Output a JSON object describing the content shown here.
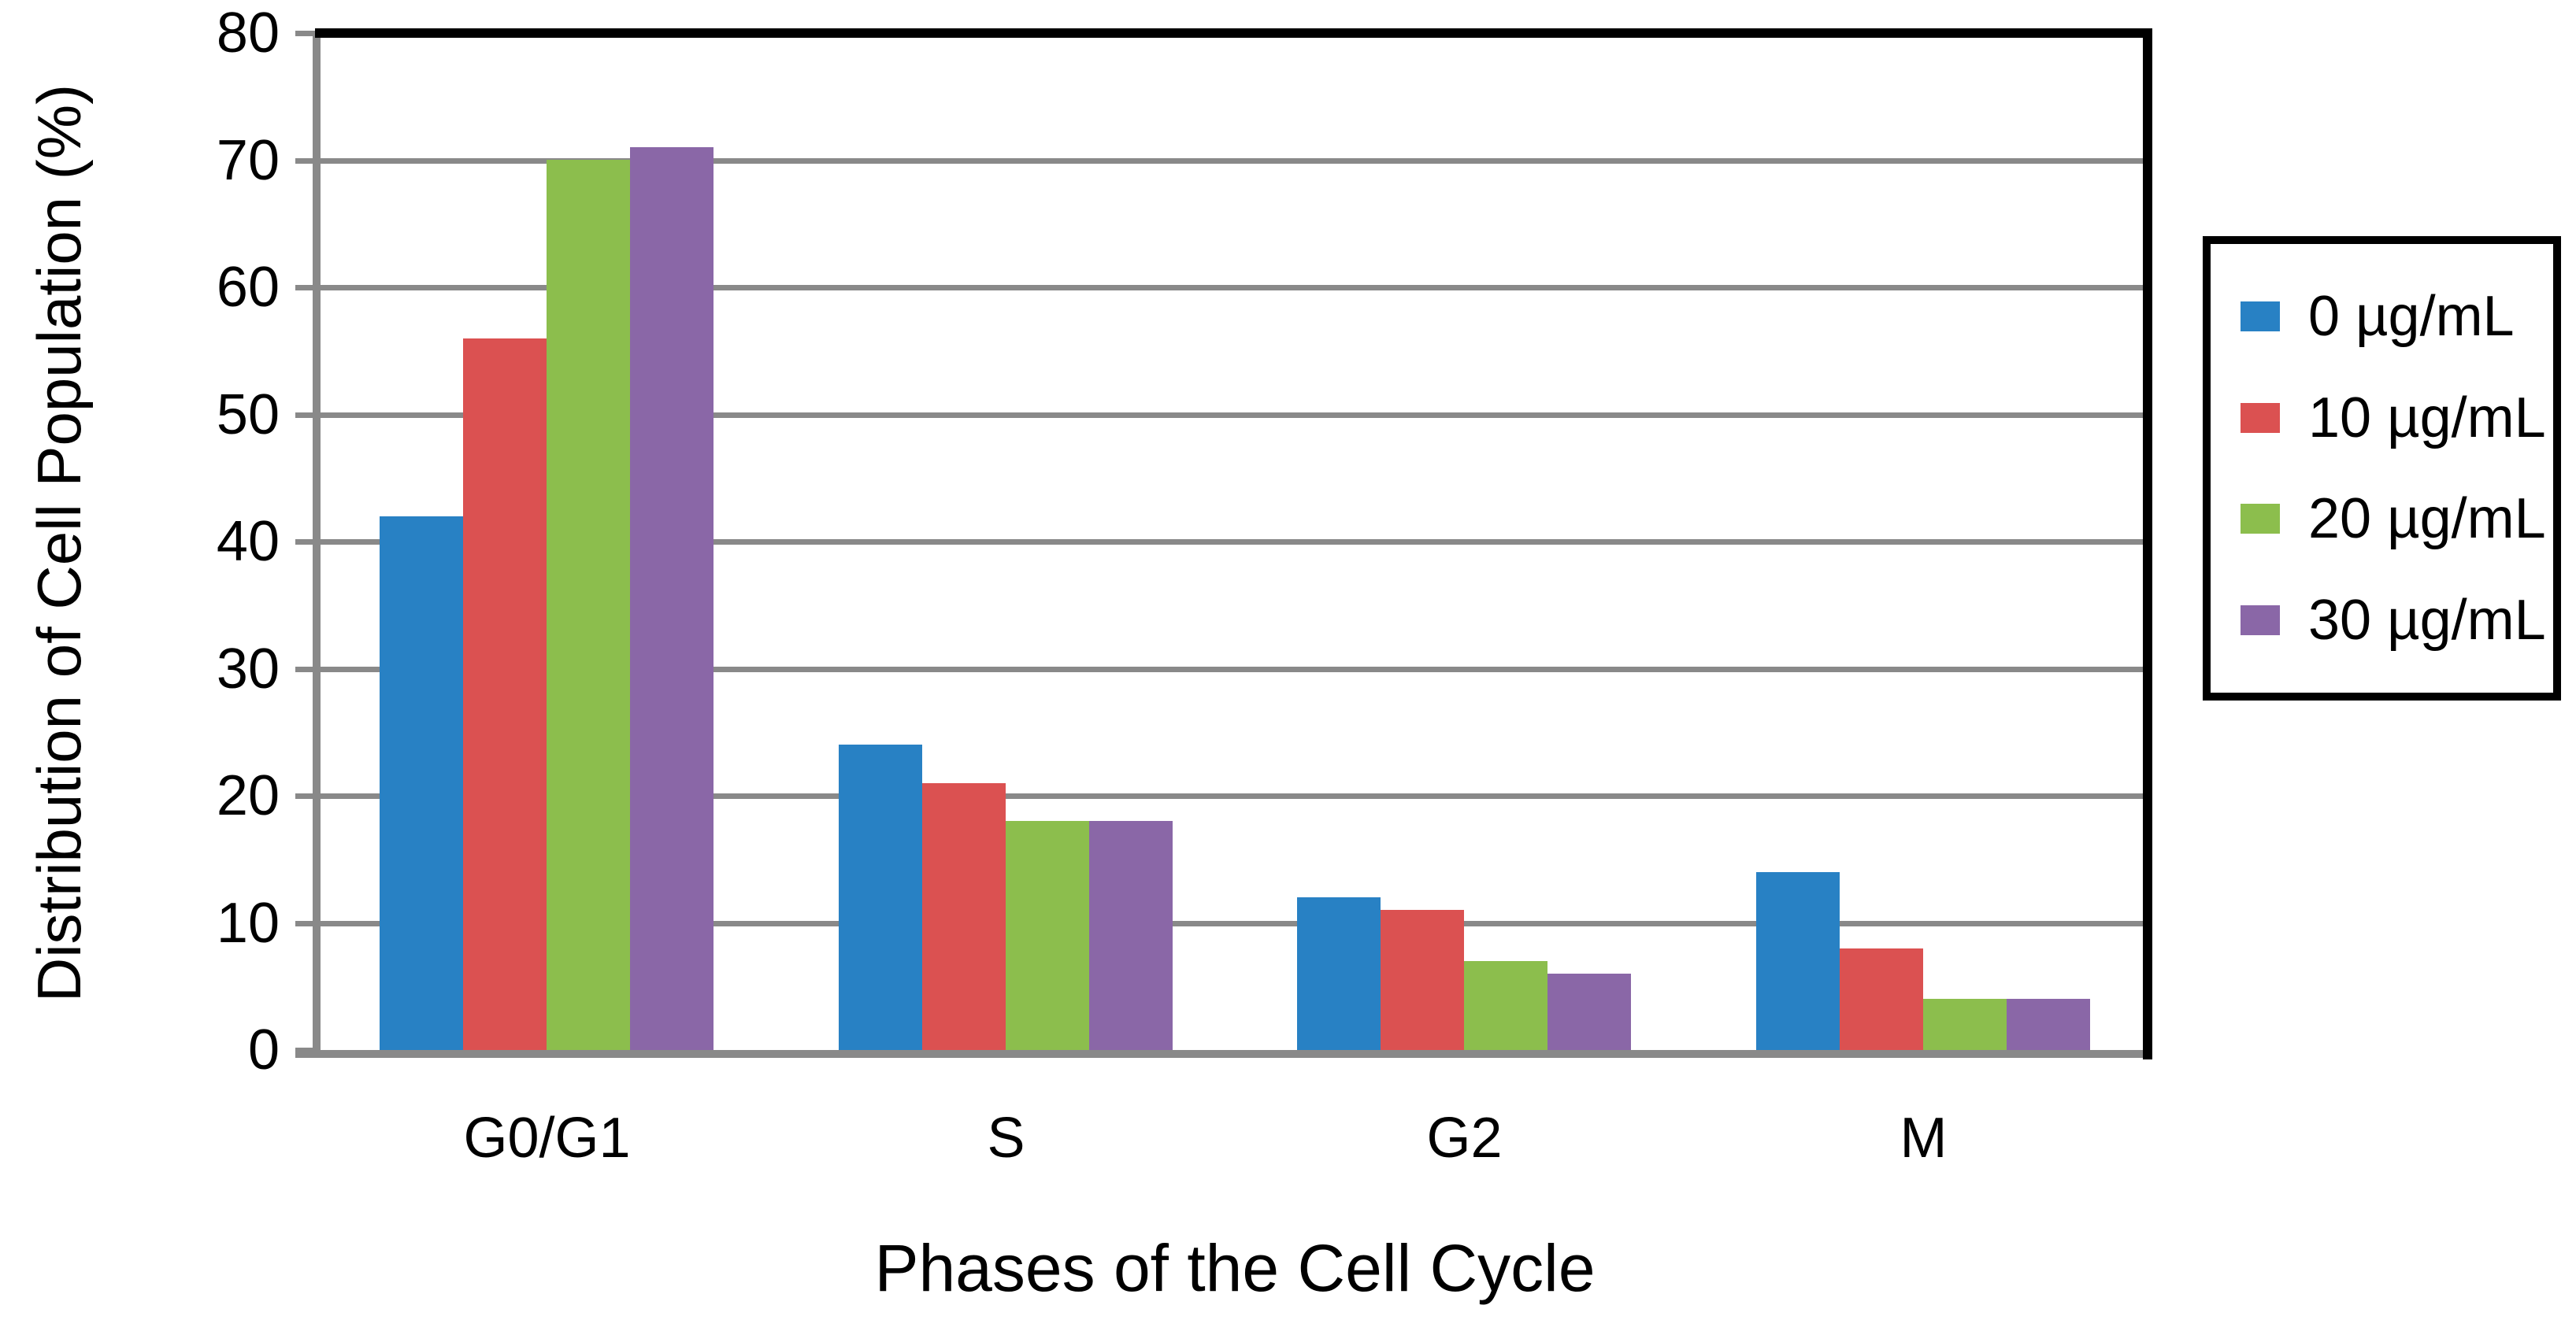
{
  "chart_data": {
    "type": "bar",
    "title": "",
    "xlabel": "Phases of the Cell Cycle",
    "ylabel": "Distribution of Cell Population (%)",
    "categories": [
      "G0/G1",
      "S",
      "G2",
      "M"
    ],
    "series": [
      {
        "name": "0 µg/mL",
        "color": "#2881C4",
        "values": [
          42,
          24,
          12,
          14
        ]
      },
      {
        "name": "10 µg/mL",
        "color": "#DB5151",
        "values": [
          56,
          21,
          11,
          8
        ]
      },
      {
        "name": "20 µg/mL",
        "color": "#8CBE4D",
        "values": [
          70,
          18,
          7,
          4
        ]
      },
      {
        "name": "30 µg/mL",
        "color": "#8A67A7",
        "values": [
          71,
          18,
          6,
          4
        ]
      }
    ],
    "ylim": [
      0,
      80
    ],
    "yticks": [
      0,
      10,
      20,
      30,
      40,
      50,
      60,
      70,
      80
    ],
    "grid": "horizontal",
    "legend_position": "right",
    "gridline_color": "#898989",
    "axis_color": "#898989",
    "plot_border_color": "#000000",
    "text_color": "#000000",
    "background_color": "#FFFFFF"
  }
}
